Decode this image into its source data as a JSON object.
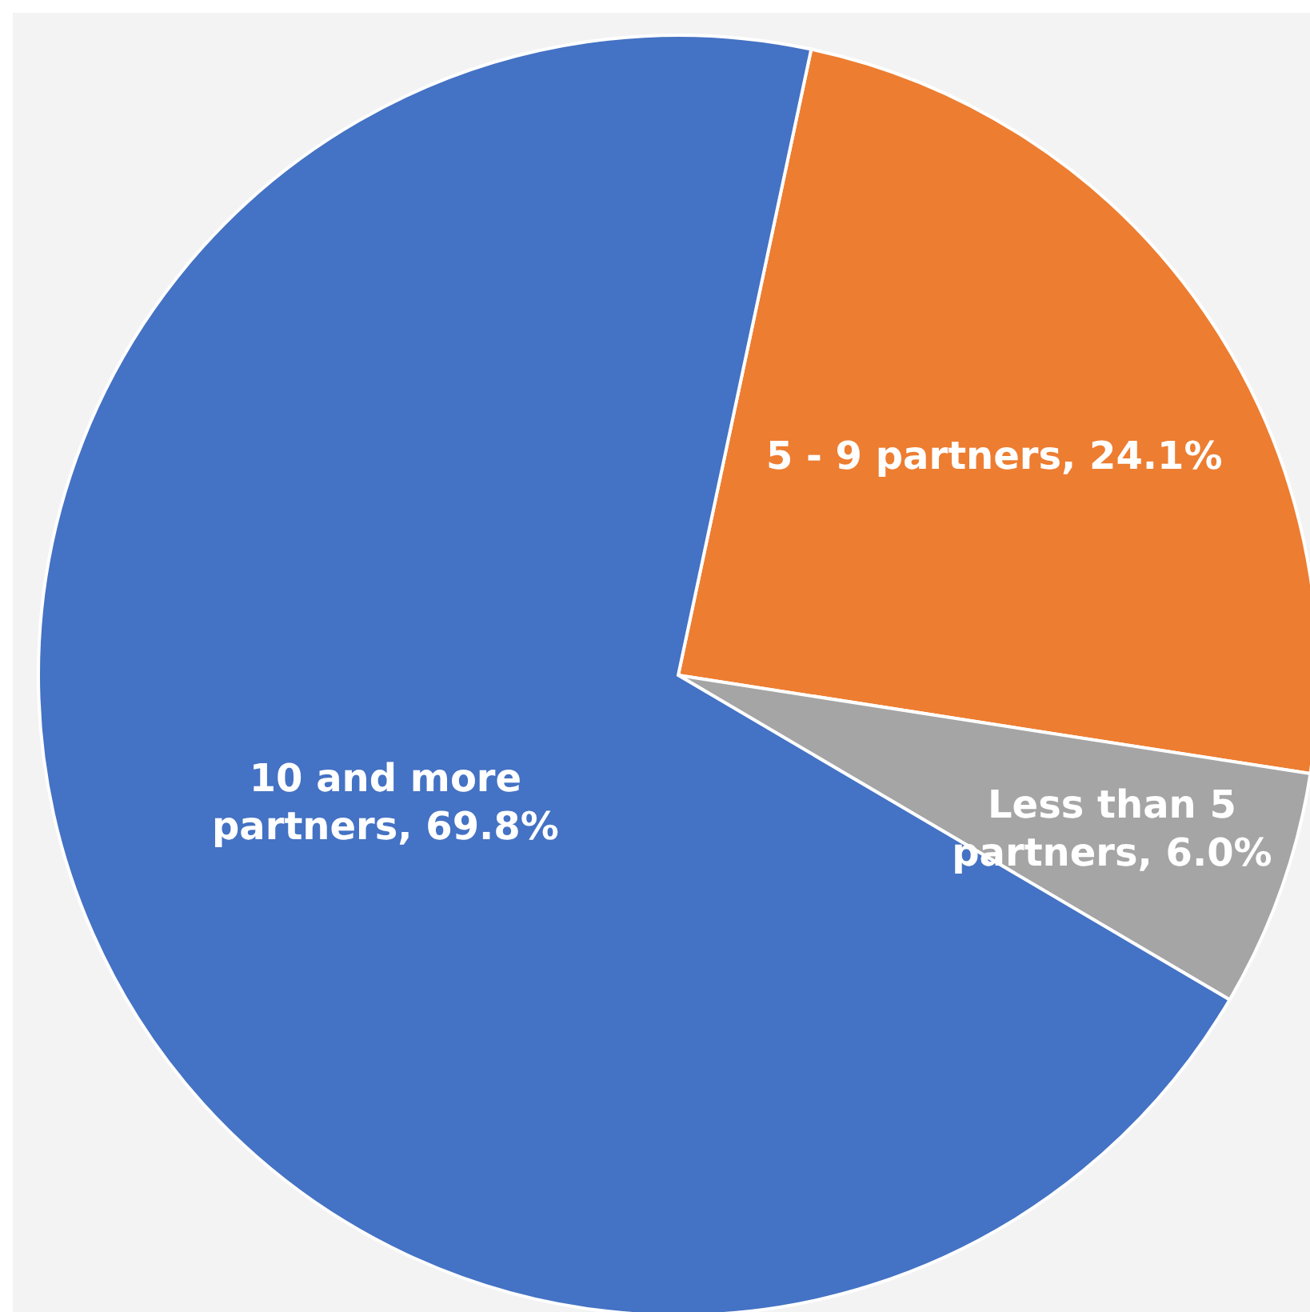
{
  "chart_data": {
    "type": "pie",
    "categories": [
      "5 - 9 partners",
      "Less than 5 partners",
      "10 and more partners"
    ],
    "values": [
      24.1,
      6.0,
      69.8
    ],
    "value_labels": [
      "24.1%",
      "6.0%",
      "69.8%"
    ],
    "colors": [
      "#ed7d31",
      "#a5a5a5",
      "#4472c4"
    ]
  }
}
